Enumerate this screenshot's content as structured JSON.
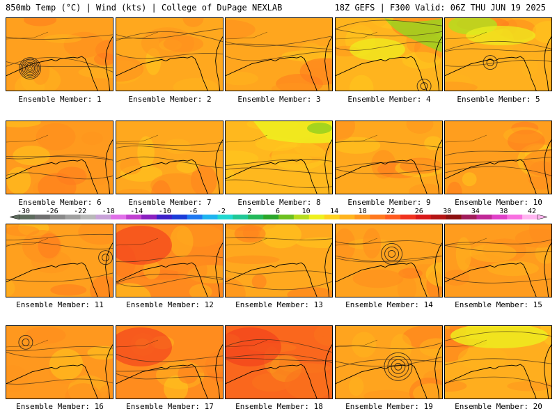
{
  "header": {
    "left": "850mb Temp (°C) | Wind (kts) | College of DuPage NEXLAB",
    "right": "18Z GEFS | F300 Valid: 06Z THU JUN 19 2025"
  },
  "colorbar": {
    "labels": [
      "-30",
      "-26",
      "-22",
      "-18",
      "-14",
      "-10",
      "-6",
      "-2",
      "2",
      "6",
      "10",
      "14",
      "18",
      "22",
      "26",
      "30",
      "34",
      "38",
      "42"
    ],
    "colors": [
      "#5d6b5d",
      "#6f6f6f",
      "#8a8a8a",
      "#a0a0a0",
      "#b8b8b8",
      "#c8a2d8",
      "#e070e8",
      "#c040d0",
      "#8a20c0",
      "#3c20c8",
      "#1a3cd8",
      "#1e78f0",
      "#1eb4f0",
      "#20d8d0",
      "#20c896",
      "#22b85a",
      "#2aa62a",
      "#6cc020",
      "#b6dc1e",
      "#eef01e",
      "#ffd21e",
      "#ffb41e",
      "#ff961e",
      "#ff781e",
      "#ff5a1e",
      "#f0321e",
      "#d81818",
      "#b41414",
      "#8c1010",
      "#a01c5a",
      "#c02896",
      "#e040c8",
      "#f870e0",
      "#ffb4f0"
    ]
  },
  "panels": [
    {
      "caption": "Ensemble Member: 1",
      "base": "#ffa01e",
      "vortex": [
        0.22,
        0.68,
        7
      ]
    },
    {
      "caption": "Ensemble Member: 2",
      "base": "#ffa81e",
      "vortex": null
    },
    {
      "caption": "Ensemble Member: 3",
      "base": "#ffa61e",
      "vortex": null
    },
    {
      "caption": "Ensemble Member: 4",
      "base": "#ffb41e",
      "vortex": [
        0.82,
        0.92,
        2
      ]
    },
    {
      "caption": "Ensemble Member: 5",
      "base": "#ffb01e",
      "vortex": [
        0.42,
        0.6,
        2
      ]
    },
    {
      "caption": "Ensemble Member: 6",
      "base": "#ff9a1e",
      "vortex": null
    },
    {
      "caption": "Ensemble Member: 7",
      "base": "#ffa81e",
      "vortex": null
    },
    {
      "caption": "Ensemble Member: 8",
      "base": "#ffb81e",
      "vortex": null
    },
    {
      "caption": "Ensemble Member: 9",
      "base": "#ffa81e",
      "vortex": null
    },
    {
      "caption": "Ensemble Member: 10",
      "base": "#ff9e1e",
      "vortex": null
    },
    {
      "caption": "Ensemble Member: 11",
      "base": "#ffa01e",
      "vortex": [
        0.92,
        0.45,
        2
      ]
    },
    {
      "caption": "Ensemble Member: 12",
      "base": "#ff8a1e",
      "vortex": null
    },
    {
      "caption": "Ensemble Member: 13",
      "base": "#ffa81e",
      "vortex": null
    },
    {
      "caption": "Ensemble Member: 14",
      "base": "#ffa21e",
      "vortex": [
        0.52,
        0.4,
        3
      ]
    },
    {
      "caption": "Ensemble Member: 15",
      "base": "#ff9c1e",
      "vortex": null
    },
    {
      "caption": "Ensemble Member: 16",
      "base": "#ff981e",
      "vortex": [
        0.18,
        0.22,
        2
      ]
    },
    {
      "caption": "Ensemble Member: 17",
      "base": "#ff8c1e",
      "vortex": null
    },
    {
      "caption": "Ensemble Member: 18",
      "base": "#ff7a1e",
      "vortex": null
    },
    {
      "caption": "Ensemble Member: 19",
      "base": "#ffa41e",
      "vortex": [
        0.58,
        0.55,
        4
      ]
    },
    {
      "caption": "Ensemble Member: 20",
      "base": "#ffae1e",
      "vortex": null
    }
  ]
}
